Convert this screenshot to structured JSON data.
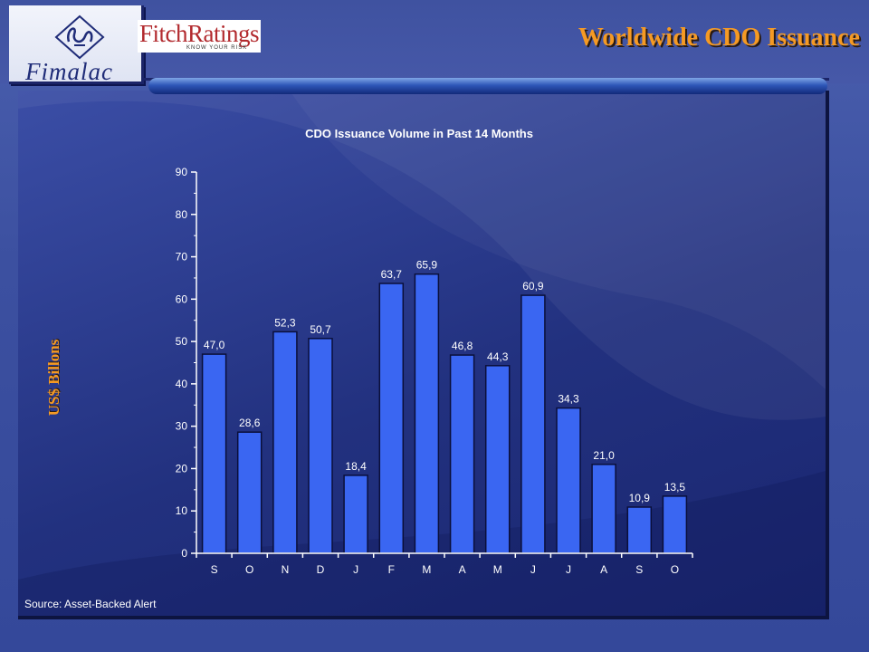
{
  "header": {
    "brand": "Fimalac",
    "partner_name": "FitchRatings",
    "partner_tagline": "KNOW YOUR RISK",
    "title": "Worldwide CDO Issuance"
  },
  "footer": {
    "source": "Source: Asset-Backed Alert"
  },
  "colors": {
    "bar": "#3a66f2",
    "title_accent": "#f59a24",
    "panel": "#22317f"
  },
  "chart_data": {
    "type": "bar",
    "title": "CDO Issuance Volume in Past 14 Months",
    "ylabel": "US$ Billons",
    "xlabel": "",
    "categories": [
      "S",
      "O",
      "N",
      "D",
      "J",
      "F",
      "M",
      "A",
      "M",
      "J",
      "J",
      "A",
      "S",
      "O"
    ],
    "values": [
      47.0,
      28.6,
      52.3,
      50.7,
      18.4,
      63.7,
      65.9,
      46.8,
      44.3,
      60.9,
      34.3,
      21.0,
      10.9,
      13.5
    ],
    "value_labels": [
      "47,0",
      "28,6",
      "52,3",
      "50,7",
      "18,4",
      "63,7",
      "65,9",
      "46,8",
      "44,3",
      "60,9",
      "34,3",
      "21,0",
      "10,9",
      "13,5"
    ],
    "ylim": [
      0,
      90
    ],
    "yticks": [
      0,
      10,
      20,
      30,
      40,
      50,
      60,
      70,
      80,
      90
    ],
    "grid": false,
    "legend": "none"
  }
}
